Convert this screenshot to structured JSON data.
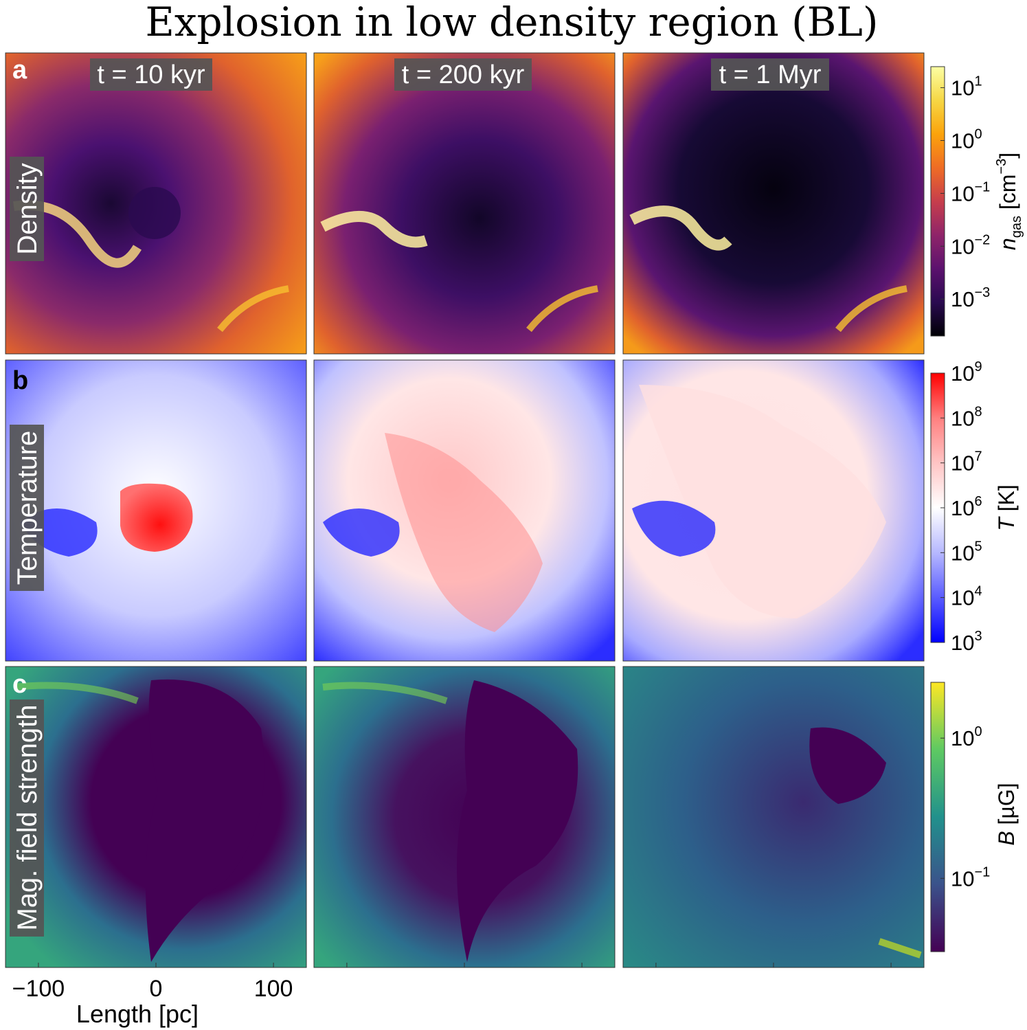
{
  "title": "Explosion in low density region (BL)",
  "columns": [
    {
      "time_label": "t = 10 kyr"
    },
    {
      "time_label": "t = 200 kyr"
    },
    {
      "time_label": "t = 1 Myr"
    }
  ],
  "rows": [
    {
      "letter": "a",
      "label": "Density",
      "colorbar": {
        "label": "n_gas [cm^-3]",
        "ticks": [
          "10^1",
          "10^0",
          "10^-1",
          "10^-2",
          "10^-3"
        ],
        "colors": [
          "#000004",
          "#2a0a50",
          "#5c126e",
          "#8f2469",
          "#c73e4c",
          "#ef6c25",
          "#fba30c",
          "#f6d745",
          "#fcffa4"
        ]
      }
    },
    {
      "letter": "b",
      "label": "Temperature",
      "colorbar": {
        "label": "T [K]",
        "ticks": [
          "10^9",
          "10^8",
          "10^7",
          "10^6",
          "10^5",
          "10^4",
          "10^3"
        ],
        "colors": [
          "#0000ff",
          "#5a5cff",
          "#b6b8ff",
          "#ffffff",
          "#ffc4c4",
          "#ff8080",
          "#ff0000"
        ]
      }
    },
    {
      "letter": "c",
      "label": "Mag. field strength",
      "colorbar": {
        "label": "B [µG]",
        "ticks": [
          "10^0",
          "10^-1"
        ],
        "colors": [
          "#440154",
          "#3b528b",
          "#21918c",
          "#5ec962",
          "#fde725"
        ]
      }
    }
  ],
  "chart_data": {
    "type": "heatmap",
    "title": "Explosion in low density region (BL)",
    "panel_grid": {
      "rows": [
        "Density",
        "Temperature",
        "Mag. field strength"
      ],
      "columns": [
        "t = 10 kyr",
        "t = 200 kyr",
        "t = 1 Myr"
      ]
    },
    "xlabel": "Length [pc]",
    "x_ticks": [
      -100,
      0,
      100
    ],
    "xlim": [
      -128,
      128
    ],
    "scale": "log",
    "fields": [
      {
        "name": "n_gas",
        "unit": "cm^-3",
        "range": [
          0.0002,
          25
        ],
        "ticks": [
          10,
          1,
          0.1,
          0.01,
          0.001
        ]
      },
      {
        "name": "T",
        "unit": "K",
        "range": [
          1000,
          1000000000
        ],
        "ticks": [
          1000000000,
          100000000,
          10000000,
          1000000,
          100000,
          10000,
          1000
        ]
      },
      {
        "name": "B",
        "unit": "µG",
        "range": [
          0.03,
          2.5
        ],
        "ticks": [
          1,
          0.1
        ]
      }
    ]
  }
}
